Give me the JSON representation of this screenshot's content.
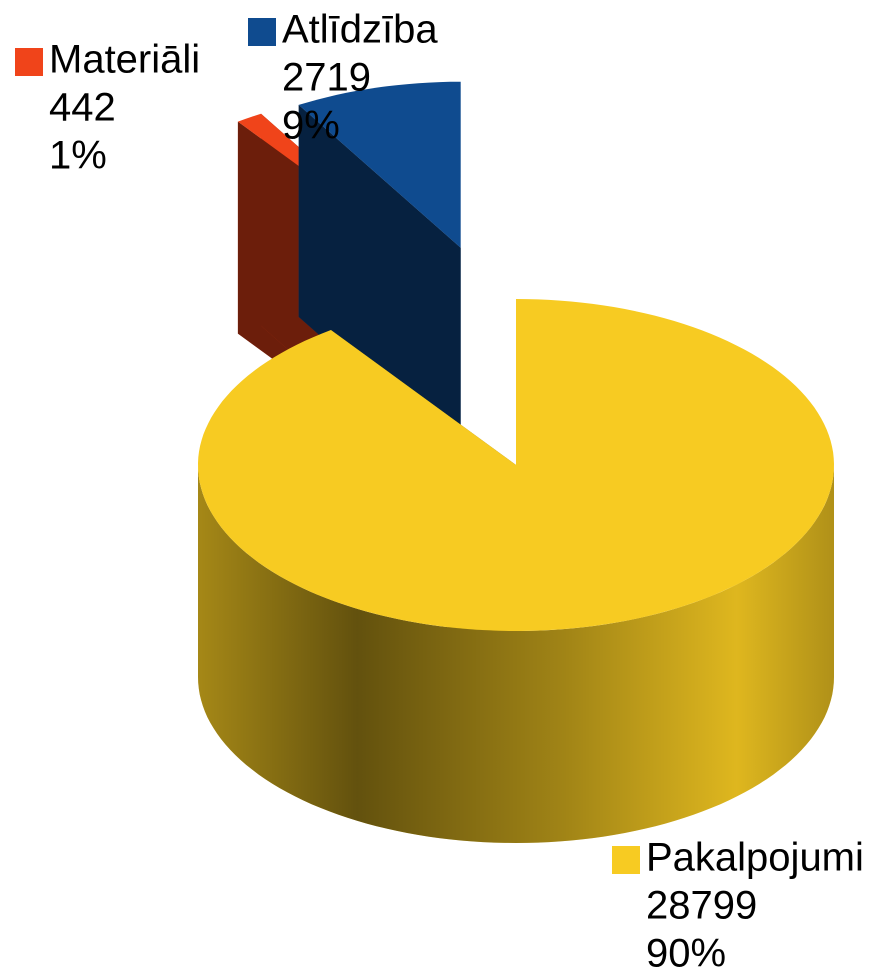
{
  "chart_data": {
    "type": "pie",
    "categories": [
      "Pakalpojumi",
      "Materiāli",
      "Atlīdzība"
    ],
    "values": [
      28799,
      442,
      2719
    ],
    "percent_labels": [
      "90%",
      "1%",
      "9%"
    ],
    "colors": [
      "#f7cb22",
      "#f0441a",
      "#0f4b8f"
    ],
    "three_d": true
  }
}
